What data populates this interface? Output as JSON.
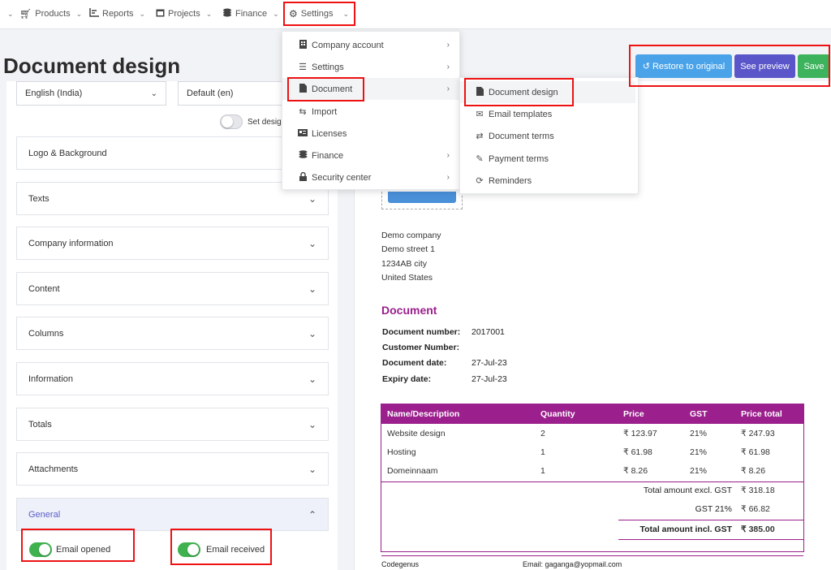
{
  "nav": {
    "items": [
      {
        "label": "Products",
        "icon": "cart-icon"
      },
      {
        "label": "Reports",
        "icon": "chart-icon"
      },
      {
        "label": "Projects",
        "icon": "calendar-icon"
      },
      {
        "label": "Finance",
        "icon": "coins-icon"
      },
      {
        "label": "Settings",
        "icon": "gear-icon"
      }
    ]
  },
  "page": {
    "title": "Document design"
  },
  "controls": {
    "language": "English (India)",
    "design": "Default (en)",
    "set_design_label": "Set design"
  },
  "actions": {
    "restore": "Restore to original",
    "preview": "See preview",
    "save": "Save"
  },
  "settings_menu": {
    "items": [
      {
        "label": "Company account",
        "icon": "building-icon",
        "has_sub": true
      },
      {
        "label": "Settings",
        "icon": "sliders-icon",
        "has_sub": true
      },
      {
        "label": "Document",
        "icon": "document-icon",
        "has_sub": true
      },
      {
        "label": "Import",
        "icon": "import-icon",
        "has_sub": false
      },
      {
        "label": "Licenses",
        "icon": "id-card-icon",
        "has_sub": false
      },
      {
        "label": "Finance",
        "icon": "coins-icon",
        "has_sub": true
      },
      {
        "label": "Security center",
        "icon": "lock-icon",
        "has_sub": true
      }
    ]
  },
  "document_menu": {
    "items": [
      {
        "label": "Document design",
        "icon": "file-icon"
      },
      {
        "label": "Email templates",
        "icon": "envelope-icon"
      },
      {
        "label": "Document terms",
        "icon": "exchange-icon"
      },
      {
        "label": "Payment terms",
        "icon": "payment-icon"
      },
      {
        "label": "Reminders",
        "icon": "refresh-icon"
      }
    ]
  },
  "accordion": {
    "sections": [
      "Logo & Background",
      "Texts",
      "Company information",
      "Content",
      "Columns",
      "Information",
      "Totals",
      "Attachments",
      "General"
    ]
  },
  "general": {
    "email_opened": "Email opened",
    "email_received": "Email received"
  },
  "preview": {
    "company_address": [
      "Demo company",
      "Demo street 1",
      "1234AB city",
      "United States"
    ],
    "doc_title": "Document",
    "meta": [
      {
        "label": "Document number:",
        "value": "2017001"
      },
      {
        "label": "Customer Number:",
        "value": ""
      },
      {
        "label": "Document date:",
        "value": "27-Jul-23"
      },
      {
        "label": "Expiry date:",
        "value": "27-Jul-23"
      }
    ],
    "table": {
      "headers": [
        "Name/Description",
        "Quantity",
        "Price",
        "GST",
        "Price total"
      ],
      "rows": [
        [
          "Website design",
          "2",
          "₹ 123.97",
          "21%",
          "₹ 247.93"
        ],
        [
          "Hosting",
          "1",
          "₹ 61.98",
          "21%",
          "₹ 61.98"
        ],
        [
          "Domeinnaam",
          "1",
          "₹ 8.26",
          "21%",
          "₹ 8.26"
        ]
      ]
    },
    "totals": [
      {
        "label": "Total amount excl. GST",
        "value": "₹ 318.18"
      },
      {
        "label": "GST 21%",
        "value": "₹ 66.82"
      },
      {
        "label": "Total amount incl. GST",
        "value": "₹ 385.00"
      }
    ],
    "footer_company": "Codegenus",
    "footer_email": "Email: gaganga@yopmail.com"
  },
  "colors": {
    "accent_purple": "#9b1f8c",
    "restore_btn": "#4aa3e8",
    "preview_btn": "#5a55c9",
    "save_btn": "#3cb35c",
    "highlight": "#e11111"
  }
}
